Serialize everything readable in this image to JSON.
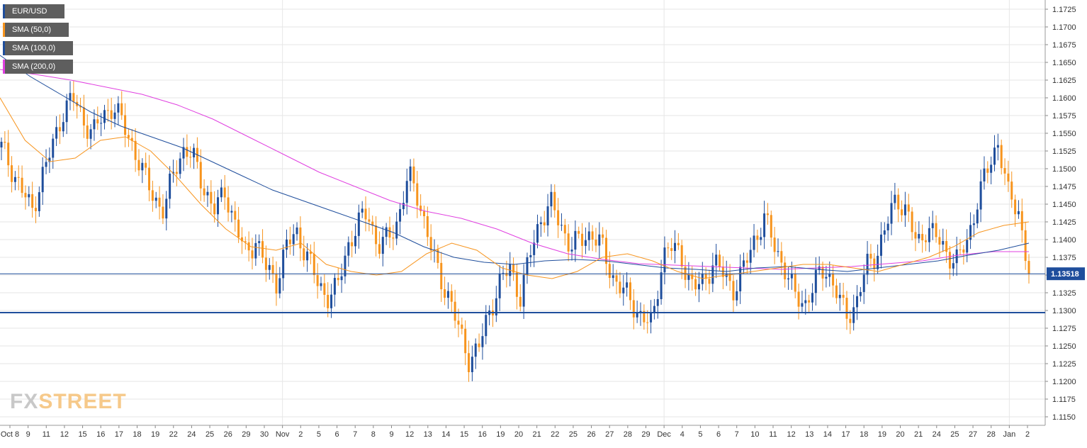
{
  "legend": [
    {
      "label": "EUR/USD",
      "color": "#1f4e9c"
    },
    {
      "label": "SMA (50,0)",
      "color": "#f7941d"
    },
    {
      "label": "SMA (100,0)",
      "color": "#1f4e9c"
    },
    {
      "label": "SMA (200,0)",
      "color": "#e040e0"
    }
  ],
  "watermark": {
    "part1": "FX",
    "part2": "STREET"
  },
  "colors": {
    "up": "#1f4e9c",
    "down": "#f7941d",
    "sma50": "#f7941d",
    "sma100": "#1f4e9c",
    "sma200": "#e040e0",
    "price_line": "#1f4e9c",
    "support_line": "#1f4e9c",
    "grid": "#e6e6e6"
  },
  "chart_data": {
    "type": "candlestick",
    "title": "",
    "ylim": [
      1.115,
      1.1725
    ],
    "y_ticks": [
      "1.1725",
      "1.1700",
      "1.1675",
      "1.1650",
      "1.1625",
      "1.1600",
      "1.1575",
      "1.1550",
      "1.1525",
      "1.1500",
      "1.1475",
      "1.1450",
      "1.1425",
      "1.1400",
      "1.1375",
      "1.1350",
      "1.1325",
      "1.1300",
      "1.1275",
      "1.1250",
      "1.1225",
      "1.1200",
      "1.1175",
      "1.1150"
    ],
    "x_ticks": [
      "Oct 8",
      "9",
      "11",
      "12",
      "15",
      "16",
      "17",
      "18",
      "19",
      "22",
      "24",
      "25",
      "26",
      "29",
      "30",
      "Nov",
      "2",
      "5",
      "6",
      "7",
      "8",
      "9",
      "12",
      "13",
      "14",
      "15",
      "16",
      "19",
      "20",
      "21",
      "22",
      "25",
      "26",
      "27",
      "28",
      "29",
      "Dec",
      "4",
      "5",
      "6",
      "7",
      "10",
      "11",
      "12",
      "13",
      "14",
      "17",
      "18",
      "19",
      "20",
      "21",
      "24",
      "25",
      "27",
      "28",
      "Jan",
      "2"
    ],
    "last_price": "1.13518",
    "last_price_value": 1.13518,
    "support_level": 1.1297,
    "price_path": [
      1.153,
      1.15,
      1.147,
      1.144,
      1.149,
      1.153,
      1.158,
      1.16,
      1.157,
      1.155,
      1.1575,
      1.159,
      1.156,
      1.153,
      1.149,
      1.146,
      1.144,
      1.15,
      1.153,
      1.151,
      1.147,
      1.144,
      1.147,
      1.142,
      1.138,
      1.14,
      1.136,
      1.134,
      1.139,
      1.141,
      1.138,
      1.134,
      1.132,
      1.133,
      1.139,
      1.142,
      1.144,
      1.139,
      1.14,
      1.143,
      1.149,
      1.146,
      1.14,
      1.135,
      1.132,
      1.127,
      1.123,
      1.125,
      1.13,
      1.134,
      1.136,
      1.132,
      1.138,
      1.143,
      1.145,
      1.142,
      1.139,
      1.14,
      1.141,
      1.139,
      1.135,
      1.133,
      1.131,
      1.129,
      1.128,
      1.138,
      1.139,
      1.137,
      1.133,
      1.134,
      1.137,
      1.135,
      1.133,
      1.136,
      1.14,
      1.143,
      1.139,
      1.136,
      1.132,
      1.131,
      1.134,
      1.136,
      1.133,
      1.129,
      1.131,
      1.136,
      1.138,
      1.142,
      1.146,
      1.144,
      1.139,
      1.142,
      1.14,
      1.138,
      1.137,
      1.14,
      1.146,
      1.15,
      1.154,
      1.146,
      1.144,
      1.1352
    ],
    "sma50": [
      1.16,
      1.154,
      1.151,
      1.1515,
      1.154,
      1.1545,
      1.1525,
      1.149,
      1.145,
      1.1415,
      1.139,
      1.1385,
      1.1395,
      1.1365,
      1.1355,
      1.135,
      1.1355,
      1.138,
      1.1395,
      1.1385,
      1.136,
      1.135,
      1.1345,
      1.1355,
      1.1375,
      1.138,
      1.137,
      1.1355,
      1.1345,
      1.135,
      1.1355,
      1.136,
      1.1365,
      1.1365,
      1.136,
      1.1355,
      1.1365,
      1.1375,
      1.139,
      1.141,
      1.142,
      1.1425
    ],
    "sma100": [
      1.166,
      1.163,
      1.1605,
      1.158,
      1.156,
      1.1545,
      1.153,
      1.151,
      1.149,
      1.147,
      1.1455,
      1.144,
      1.1425,
      1.141,
      1.139,
      1.1375,
      1.1368,
      1.1365,
      1.137,
      1.1372,
      1.137,
      1.1365,
      1.136,
      1.1358,
      1.1355,
      1.136,
      1.1362,
      1.1358,
      1.1355,
      1.136,
      1.1365,
      1.137,
      1.1378,
      1.1385,
      1.1395
    ],
    "sma200": [
      1.164,
      1.1633,
      1.1625,
      1.1615,
      1.1605,
      1.159,
      1.157,
      1.1545,
      1.152,
      1.1495,
      1.1475,
      1.1455,
      1.144,
      1.143,
      1.1415,
      1.1395,
      1.138,
      1.1372,
      1.1366,
      1.1364,
      1.1362,
      1.136,
      1.1358,
      1.136,
      1.1362,
      1.1366,
      1.137,
      1.1378,
      1.1383,
      1.1383
    ]
  }
}
